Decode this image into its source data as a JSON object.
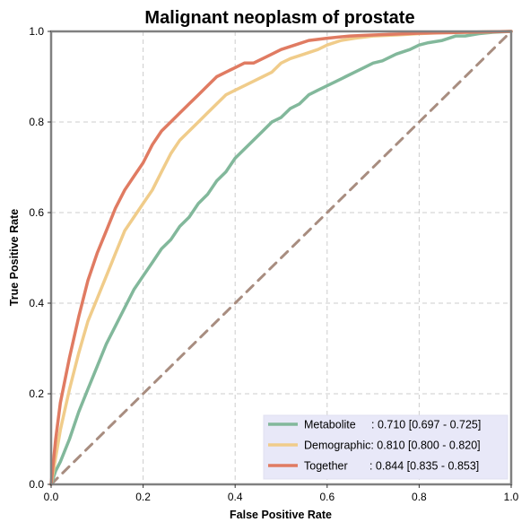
{
  "chart_data": {
    "type": "line",
    "title": "Malignant neoplasm of prostate",
    "xlabel": "False Positive Rate",
    "ylabel": "True Positive Rate",
    "xlim": [
      0,
      1
    ],
    "ylim": [
      0,
      1
    ],
    "xticks": [
      "0.0",
      "0.2",
      "0.4",
      "0.6",
      "0.8",
      "1.0"
    ],
    "yticks": [
      "0.0",
      "0.2",
      "0.4",
      "0.6",
      "0.8",
      "1.0"
    ],
    "grid": true,
    "legend_position": "bottom-right",
    "series": [
      {
        "name": "Metabolite",
        "legend_label": "Metabolite     : 0.710 [0.697 - 0.725]",
        "color": "#82b89b",
        "x": [
          0,
          0.01,
          0.02,
          0.04,
          0.06,
          0.08,
          0.1,
          0.12,
          0.14,
          0.16,
          0.18,
          0.2,
          0.22,
          0.24,
          0.26,
          0.28,
          0.3,
          0.32,
          0.34,
          0.36,
          0.38,
          0.4,
          0.42,
          0.44,
          0.46,
          0.48,
          0.5,
          0.52,
          0.54,
          0.56,
          0.58,
          0.6,
          0.62,
          0.64,
          0.66,
          0.68,
          0.7,
          0.72,
          0.75,
          0.78,
          0.8,
          0.82,
          0.85,
          0.88,
          0.9,
          0.93,
          0.96,
          1.0
        ],
        "y": [
          0,
          0.03,
          0.05,
          0.1,
          0.16,
          0.21,
          0.26,
          0.31,
          0.35,
          0.39,
          0.43,
          0.46,
          0.49,
          0.52,
          0.54,
          0.57,
          0.59,
          0.62,
          0.64,
          0.67,
          0.69,
          0.72,
          0.74,
          0.76,
          0.78,
          0.8,
          0.81,
          0.83,
          0.84,
          0.86,
          0.87,
          0.88,
          0.89,
          0.9,
          0.91,
          0.92,
          0.93,
          0.935,
          0.95,
          0.96,
          0.97,
          0.975,
          0.98,
          0.99,
          0.99,
          0.995,
          0.998,
          1.0
        ]
      },
      {
        "name": "Demographic",
        "legend_label": "Demographic: 0.810 [0.800 - 0.820]",
        "color": "#f0cc8a",
        "x": [
          0,
          0.01,
          0.02,
          0.04,
          0.06,
          0.08,
          0.1,
          0.12,
          0.14,
          0.16,
          0.18,
          0.2,
          0.22,
          0.24,
          0.26,
          0.28,
          0.3,
          0.32,
          0.34,
          0.36,
          0.38,
          0.4,
          0.42,
          0.44,
          0.46,
          0.48,
          0.5,
          0.52,
          0.55,
          0.58,
          0.6,
          0.63,
          0.66,
          0.7,
          0.75,
          0.8,
          0.85,
          0.9,
          0.95,
          1.0
        ],
        "y": [
          0,
          0.06,
          0.12,
          0.21,
          0.29,
          0.36,
          0.41,
          0.46,
          0.51,
          0.56,
          0.59,
          0.62,
          0.65,
          0.69,
          0.73,
          0.76,
          0.78,
          0.8,
          0.82,
          0.84,
          0.86,
          0.87,
          0.88,
          0.89,
          0.9,
          0.91,
          0.93,
          0.94,
          0.95,
          0.96,
          0.97,
          0.98,
          0.985,
          0.99,
          0.992,
          0.995,
          0.997,
          0.998,
          0.999,
          1.0
        ]
      },
      {
        "name": "Together",
        "legend_label": "Together       : 0.844 [0.835 - 0.853]",
        "color": "#e07b62",
        "x": [
          0,
          0.01,
          0.02,
          0.04,
          0.06,
          0.08,
          0.1,
          0.12,
          0.14,
          0.16,
          0.18,
          0.2,
          0.22,
          0.24,
          0.26,
          0.28,
          0.3,
          0.32,
          0.34,
          0.36,
          0.38,
          0.4,
          0.42,
          0.44,
          0.46,
          0.48,
          0.5,
          0.53,
          0.56,
          0.6,
          0.65,
          0.7,
          0.75,
          0.8,
          0.85,
          0.9,
          0.95,
          1.0
        ],
        "y": [
          0,
          0.1,
          0.18,
          0.28,
          0.37,
          0.45,
          0.51,
          0.56,
          0.61,
          0.65,
          0.68,
          0.71,
          0.75,
          0.78,
          0.8,
          0.82,
          0.84,
          0.86,
          0.88,
          0.9,
          0.91,
          0.92,
          0.93,
          0.93,
          0.94,
          0.95,
          0.96,
          0.97,
          0.98,
          0.985,
          0.99,
          0.992,
          0.994,
          0.996,
          0.997,
          0.998,
          0.999,
          1.0
        ]
      },
      {
        "name": "Chance",
        "color": "#a88d80",
        "dashed": true,
        "x": [
          0,
          1
        ],
        "y": [
          0,
          1
        ]
      }
    ]
  }
}
